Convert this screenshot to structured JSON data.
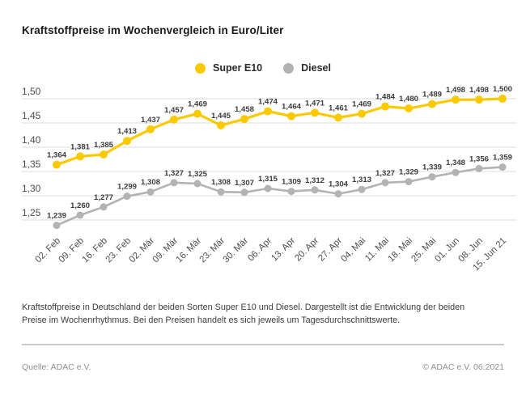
{
  "title": "Kraftstoffpreise im Wochenvergleich in Euro/Liter",
  "legend": [
    {
      "label": "Super E10",
      "color": "#FBC900"
    },
    {
      "label": "Diesel",
      "color": "#B3B3B3"
    }
  ],
  "chart_data": {
    "type": "line",
    "categories": [
      "02. Feb",
      "09. Feb",
      "16. Feb",
      "23. Feb",
      "02. Mär",
      "09. Mär",
      "16. Mär",
      "23. Mär",
      "30. Mär",
      "06. Apr",
      "13. Apr",
      "20. Apr",
      "27. Apr",
      "04. Mai",
      "11. Mai",
      "18. Mai",
      "25. Mai",
      "01. Jun",
      "08. Jun",
      "15. Jun 21"
    ],
    "series": [
      {
        "name": "Super E10",
        "color": "#FBC900",
        "values": [
          1.364,
          1.381,
          1.385,
          1.413,
          1.437,
          1.457,
          1.469,
          1.445,
          1.458,
          1.474,
          1.464,
          1.471,
          1.461,
          1.469,
          1.484,
          1.48,
          1.489,
          1.498,
          1.498,
          1.5
        ]
      },
      {
        "name": "Diesel",
        "color": "#B3B3B3",
        "values": [
          1.239,
          1.26,
          1.277,
          1.299,
          1.308,
          1.327,
          1.325,
          1.308,
          1.307,
          1.315,
          1.309,
          1.312,
          1.304,
          1.313,
          1.327,
          1.329,
          1.339,
          1.348,
          1.356,
          1.359
        ]
      }
    ],
    "title": "Kraftstoffpreise im Wochenvergleich in Euro/Liter",
    "xlabel": "",
    "ylabel": "Euro/Liter",
    "ylim": [
      1.25,
      1.5
    ],
    "yticks": [
      1.5,
      1.45,
      1.4,
      1.35,
      1.3,
      1.25
    ],
    "ytick_labels": [
      "1,50",
      "1,45",
      "1,40",
      "1,35",
      "1,30",
      "1,25"
    ],
    "grid": true,
    "legend_position": "top-center",
    "decimal_separator": ",",
    "data_labels": true,
    "colors": {
      "grid": "#dcdcdc",
      "axis_text": "#4d4d4d",
      "data_label_text": "#3d3d3d"
    }
  },
  "caption": "Kraftstoffpreise in Deutschland der beiden Sorten Super E10 und Diesel. Dargestellt ist die Entwicklung der beiden Preise im Wochenrhythmus. Bei den Preisen handelt es sich jeweils um Tagesdurchschnittswerte.",
  "footer": {
    "source": "Quelle: ADAC e.V.",
    "copyright": "© ADAC e.V. 06.2021"
  }
}
